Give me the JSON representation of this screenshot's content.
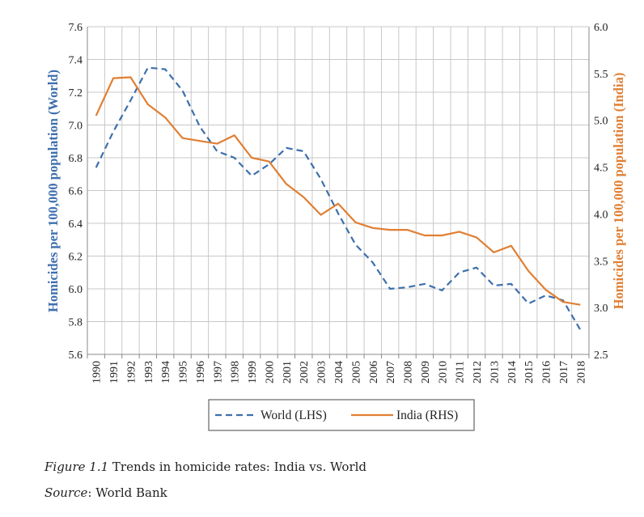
{
  "chart_data": {
    "type": "line",
    "title": "",
    "x": [
      1990,
      1991,
      1992,
      1993,
      1994,
      1995,
      1996,
      1997,
      1998,
      1999,
      2000,
      2001,
      2002,
      2003,
      2004,
      2005,
      2006,
      2007,
      2008,
      2009,
      2010,
      2011,
      2012,
      2013,
      2014,
      2015,
      2016,
      2017,
      2018
    ],
    "x_tick_labels": [
      "1990",
      "1991",
      "1992",
      "1993",
      "1994",
      "1995",
      "1996",
      "1997",
      "1998",
      "1999",
      "2000",
      "2001",
      "2002",
      "2003",
      "2004",
      "2005",
      "2006",
      "2007",
      "2008",
      "2009",
      "2010",
      "2011",
      "2012",
      "2013",
      "2014",
      "2015",
      "2016",
      "2017",
      "2018"
    ],
    "left_axis": {
      "label": "Homicides per 100,000 population (World)",
      "ylim": [
        5.6,
        7.6
      ],
      "ticks": [
        "5.6",
        "5.8",
        "6.0",
        "6.2",
        "6.4",
        "6.6",
        "6.8",
        "7.0",
        "7.2",
        "7.4",
        "7.6"
      ],
      "tick_values": [
        5.6,
        5.8,
        6.0,
        6.2,
        6.4,
        6.6,
        6.8,
        7.0,
        7.2,
        7.4,
        7.6
      ]
    },
    "right_axis": {
      "label": "Homicides per 100,000 population (India)",
      "ylim": [
        2.5,
        6.0
      ],
      "ticks": [
        "2.5",
        "3.0",
        "3.5",
        "4.0",
        "4.5",
        "5.0",
        "5.5",
        "6.0"
      ],
      "tick_values": [
        2.5,
        3.0,
        3.5,
        4.0,
        4.5,
        5.0,
        5.5,
        6.0
      ]
    },
    "series": [
      {
        "name": "World (LHS)",
        "axis": "left",
        "style": "dashed",
        "color": "#3d6fad",
        "values": [
          6.74,
          6.96,
          7.15,
          7.35,
          7.34,
          7.21,
          6.99,
          6.84,
          6.8,
          6.69,
          6.76,
          6.86,
          6.84,
          6.67,
          6.46,
          6.27,
          6.16,
          6.0,
          6.01,
          6.03,
          5.99,
          6.1,
          6.13,
          6.02,
          6.03,
          5.91,
          5.96,
          5.93,
          5.75
        ]
      },
      {
        "name": "India (RHS)",
        "axis": "right",
        "style": "solid",
        "color": "#e07f33",
        "values": [
          5.05,
          5.45,
          5.46,
          5.17,
          5.03,
          4.81,
          4.78,
          4.75,
          4.84,
          4.6,
          4.56,
          4.32,
          4.18,
          3.99,
          4.11,
          3.91,
          3.85,
          3.83,
          3.83,
          3.77,
          3.77,
          3.81,
          3.75,
          3.59,
          3.66,
          3.39,
          3.19,
          3.06,
          3.03
        ]
      }
    ],
    "grid": true,
    "legend_position": "bottom-center"
  },
  "caption": {
    "figure_label": "Figure 1.1",
    "figure_text": " Trends in homicide rates: India vs. World",
    "source_label": "Source",
    "source_text": ": World Bank"
  }
}
